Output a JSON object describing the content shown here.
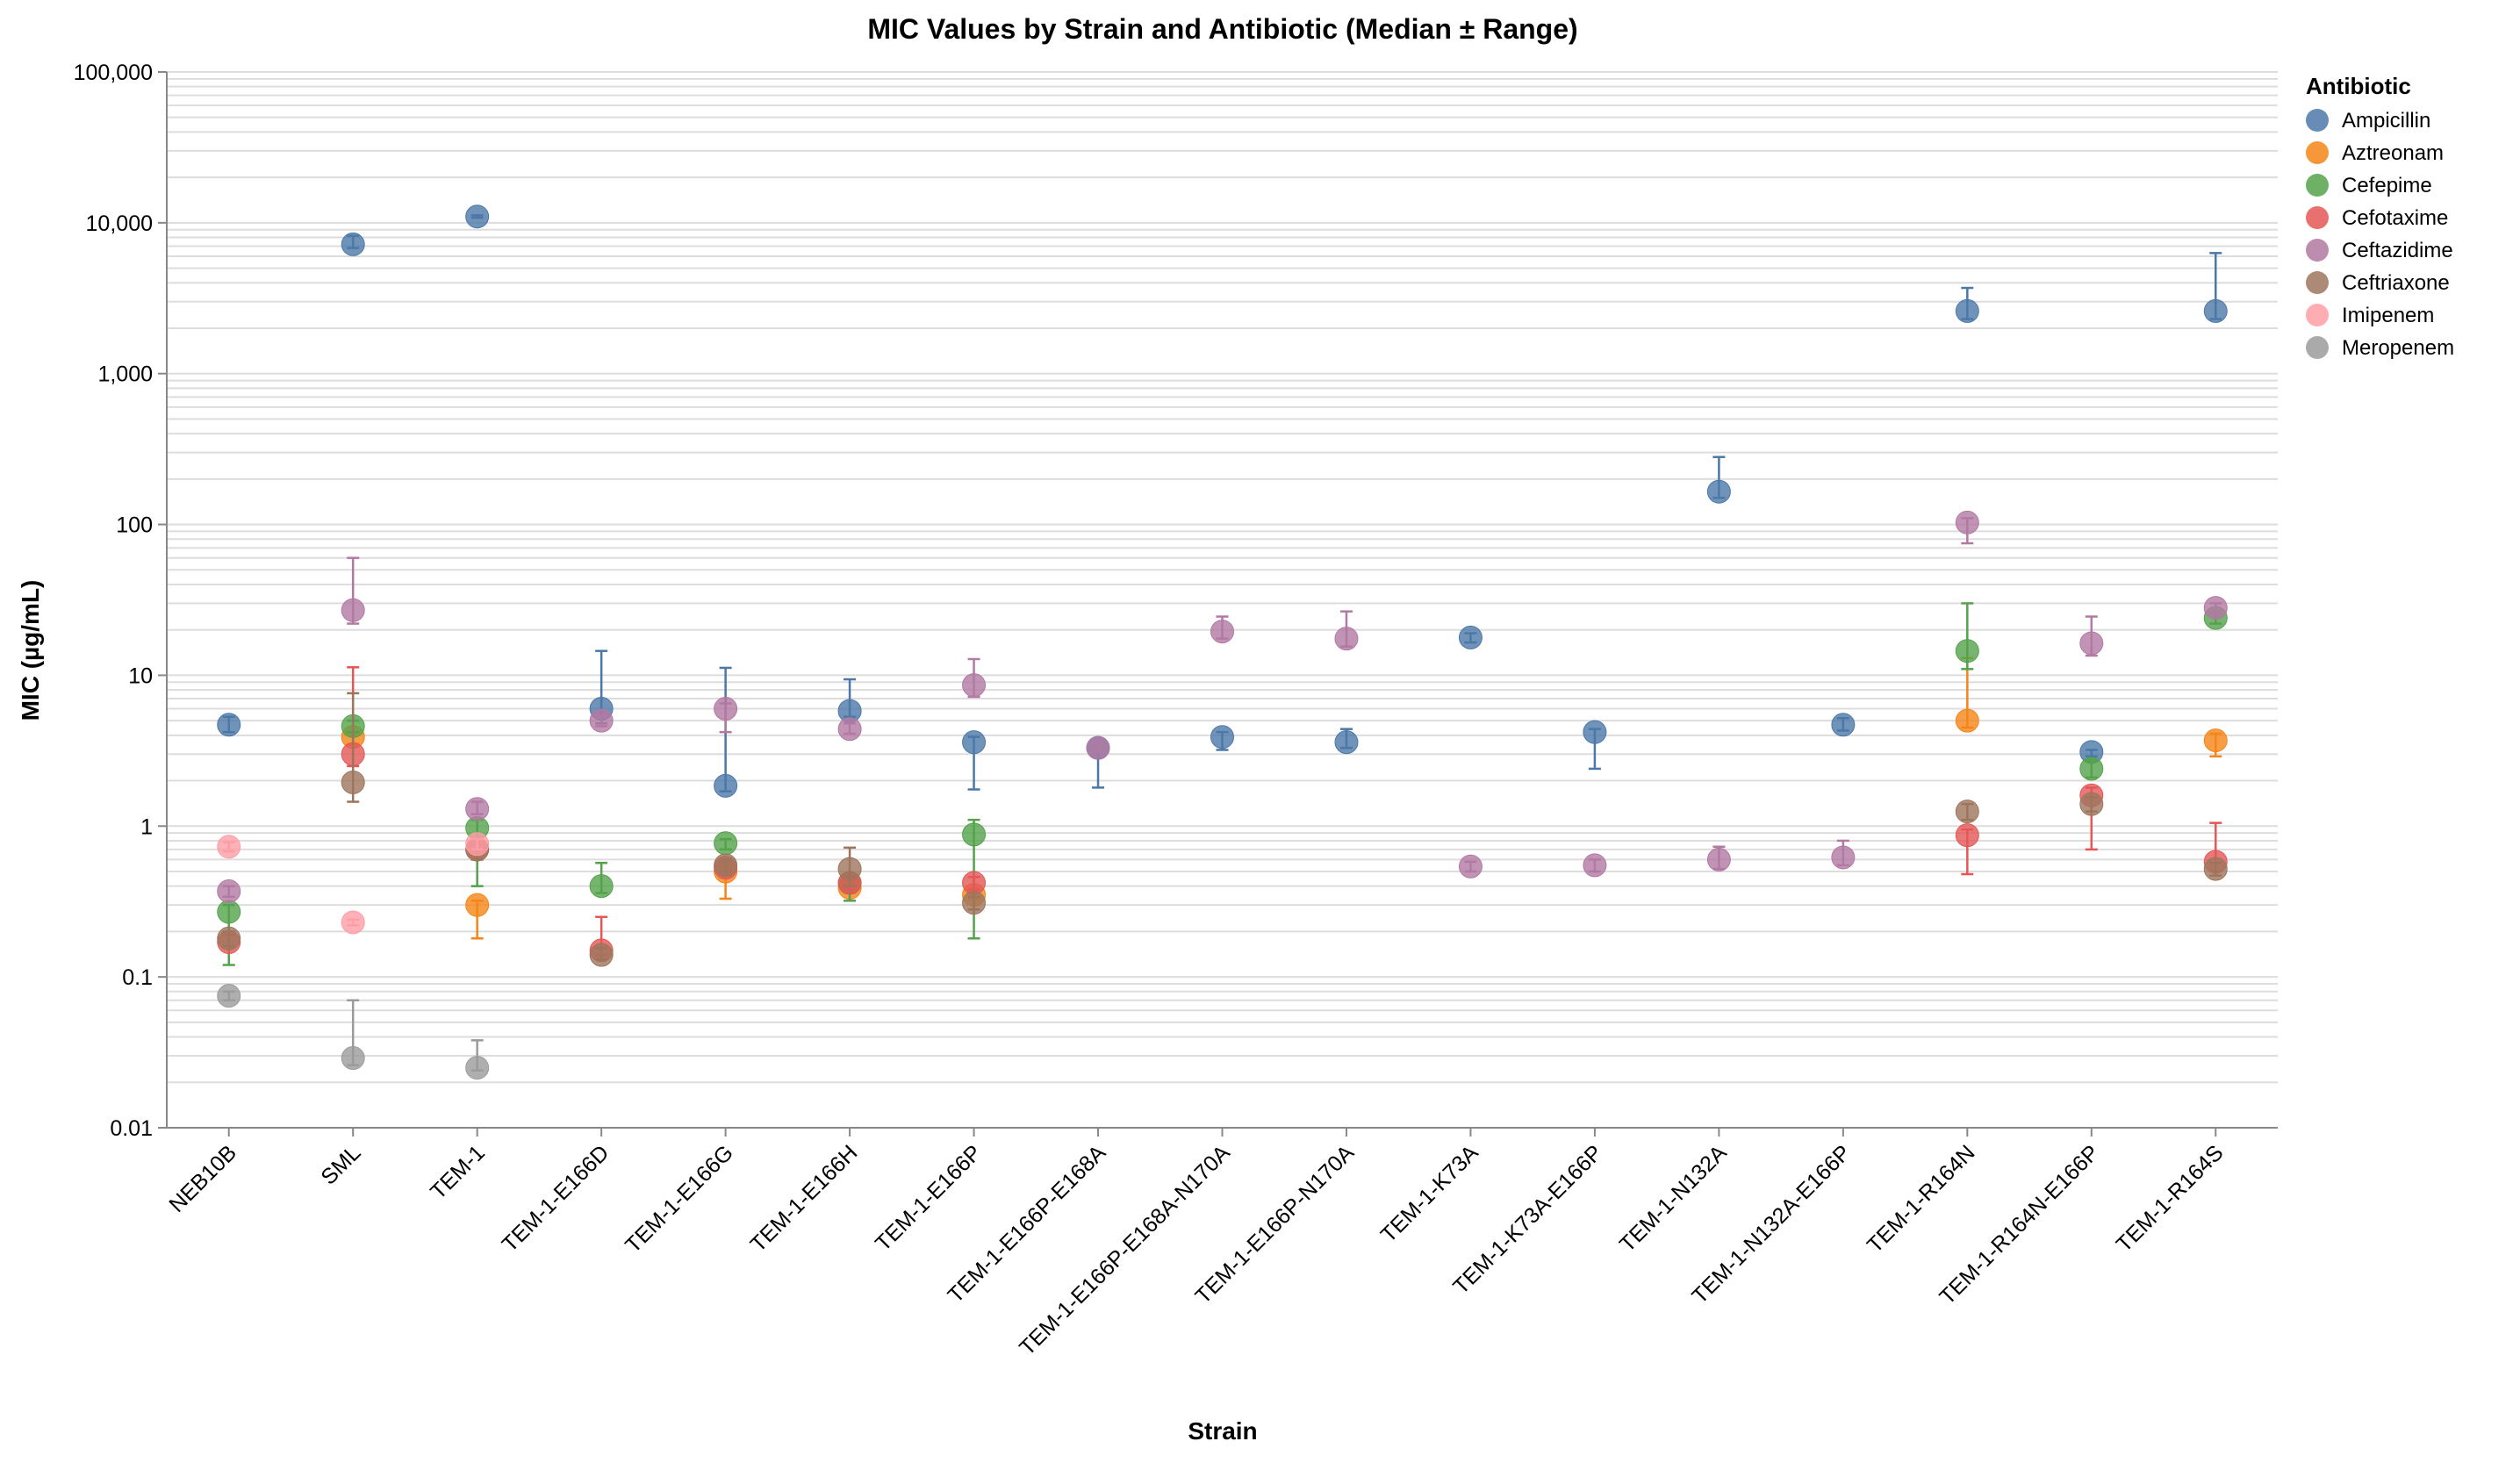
{
  "chart_data": {
    "type": "scatter",
    "title": "MIC Values by Strain and Antibiotic (Median ± Range)",
    "xlabel": "Strain",
    "ylabel": "MIC (µg/mL)",
    "y_scale": "log",
    "ylim": [
      0.01,
      100000
    ],
    "y_ticks": [
      "0.01",
      "0.1",
      "1",
      "10",
      "100",
      "1,000",
      "10,000",
      "100,000"
    ],
    "grid": true,
    "legend_position": "right",
    "legend_title": "Antibiotic",
    "categories": [
      "NEB10B",
      "SML",
      "TEM-1",
      "TEM-1-E166D",
      "TEM-1-E166G",
      "TEM-1-E166H",
      "TEM-1-E166P",
      "TEM-1-E166P-E168A",
      "TEM-1-E166P-E168A-N170A",
      "TEM-1-E166P-N170A",
      "TEM-1-K73A",
      "TEM-1-K73A-E166P",
      "TEM-1-N132A",
      "TEM-1-N132A-E166P",
      "TEM-1-R164N",
      "TEM-1-R164N-E166P",
      "TEM-1-R164S"
    ],
    "series": [
      {
        "name": "Ampicillin",
        "color": "#4c78a8",
        "points": [
          {
            "x": "NEB10B",
            "y": 4.7,
            "lo": 4.2,
            "hi": 5.3
          },
          {
            "x": "SML",
            "y": 7200,
            "lo": 6800,
            "hi": 8200
          },
          {
            "x": "TEM-1",
            "y": 11000,
            "lo": 10800,
            "hi": 11200
          },
          {
            "x": "TEM-1-E166D",
            "y": 6.0,
            "lo": 4.8,
            "hi": 14.5
          },
          {
            "x": "TEM-1-E166G",
            "y": 1.85,
            "lo": 1.7,
            "hi": 11.2
          },
          {
            "x": "TEM-1-E166H",
            "y": 5.8,
            "lo": 5.3,
            "hi": 9.4
          },
          {
            "x": "TEM-1-E166P",
            "y": 3.6,
            "lo": 1.75,
            "hi": 3.9
          },
          {
            "x": "TEM-1-E166P-E168A",
            "y": 3.3,
            "lo": 1.8,
            "hi": 3.5
          },
          {
            "x": "TEM-1-E166P-E168A-N170A",
            "y": 3.9,
            "lo": 3.2,
            "hi": 4.2
          },
          {
            "x": "TEM-1-E166P-N170A",
            "y": 3.6,
            "lo": 3.3,
            "hi": 4.4
          },
          {
            "x": "TEM-1-K73A",
            "y": 17.8,
            "lo": 16.5,
            "hi": 19
          },
          {
            "x": "TEM-1-K73A-E166P",
            "y": 4.2,
            "lo": 2.4,
            "hi": 4.4
          },
          {
            "x": "TEM-1-N132A",
            "y": 165,
            "lo": 150,
            "hi": 280
          },
          {
            "x": "TEM-1-N132A-E166P",
            "y": 4.7,
            "lo": 4.3,
            "hi": 5.2
          },
          {
            "x": "TEM-1-R164N",
            "y": 2600,
            "lo": 2300,
            "hi": 3700
          },
          {
            "x": "TEM-1-R164N-E166P",
            "y": 3.1,
            "lo": 2.9,
            "hi": 3.2
          },
          {
            "x": "TEM-1-R164S",
            "y": 2600,
            "lo": 2300,
            "hi": 6300
          }
        ]
      },
      {
        "name": "Aztreonam",
        "color": "#f58518",
        "points": [
          {
            "x": "SML",
            "y": 3.9,
            "lo": 3.5,
            "hi": 4.2
          },
          {
            "x": "TEM-1",
            "y": 0.3,
            "lo": 0.18,
            "hi": 0.32
          },
          {
            "x": "TEM-1-E166G",
            "y": 0.5,
            "lo": 0.33,
            "hi": 0.55
          },
          {
            "x": "TEM-1-E166H",
            "y": 0.39,
            "lo": 0.36,
            "hi": 0.42
          },
          {
            "x": "TEM-1-E166P",
            "y": 0.35,
            "lo": 0.33,
            "hi": 0.38
          },
          {
            "x": "TEM-1-R164N",
            "y": 5.0,
            "lo": 4.5,
            "hi": 13
          },
          {
            "x": "TEM-1-R164S",
            "y": 3.7,
            "lo": 2.9,
            "hi": 4.1
          }
        ]
      },
      {
        "name": "Cefepime",
        "color": "#54a24b",
        "points": [
          {
            "x": "NEB10B",
            "y": 0.27,
            "lo": 0.12,
            "hi": 0.3
          },
          {
            "x": "SML",
            "y": 4.6,
            "lo": 4.2,
            "hi": 5
          },
          {
            "x": "TEM-1",
            "y": 0.97,
            "lo": 0.4,
            "hi": 1.1
          },
          {
            "x": "TEM-1-E166D",
            "y": 0.4,
            "lo": 0.36,
            "hi": 0.57
          },
          {
            "x": "TEM-1-E166G",
            "y": 0.77,
            "lo": 0.7,
            "hi": 0.82
          },
          {
            "x": "TEM-1-E166H",
            "y": 0.42,
            "lo": 0.32,
            "hi": 0.45
          },
          {
            "x": "TEM-1-E166P",
            "y": 0.88,
            "lo": 0.18,
            "hi": 1.1
          },
          {
            "x": "TEM-1-R164N",
            "y": 14.5,
            "lo": 11,
            "hi": 30
          },
          {
            "x": "TEM-1-R164N-E166P",
            "y": 2.4,
            "lo": 2.1,
            "hi": 2.7
          },
          {
            "x": "TEM-1-R164S",
            "y": 24,
            "lo": 22,
            "hi": 26
          }
        ]
      },
      {
        "name": "Cefotaxime",
        "color": "#e45756",
        "points": [
          {
            "x": "NEB10B",
            "y": 0.17,
            "lo": 0.16,
            "hi": 0.19
          },
          {
            "x": "SML",
            "y": 3.0,
            "lo": 2.5,
            "hi": 11.3
          },
          {
            "x": "TEM-1",
            "y": 0.7,
            "lo": 0.6,
            "hi": 0.8
          },
          {
            "x": "TEM-1-E166D",
            "y": 0.15,
            "lo": 0.14,
            "hi": 0.25
          },
          {
            "x": "TEM-1-E166G",
            "y": 0.53,
            "lo": 0.48,
            "hi": 0.58
          },
          {
            "x": "TEM-1-E166H",
            "y": 0.42,
            "lo": 0.38,
            "hi": 0.46
          },
          {
            "x": "TEM-1-E166P",
            "y": 0.42,
            "lo": 0.38,
            "hi": 0.46
          },
          {
            "x": "TEM-1-R164N",
            "y": 0.87,
            "lo": 0.48,
            "hi": 0.95
          },
          {
            "x": "TEM-1-R164N-E166P",
            "y": 1.6,
            "lo": 0.7,
            "hi": 1.8
          },
          {
            "x": "TEM-1-R164S",
            "y": 0.58,
            "lo": 0.5,
            "hi": 1.05
          }
        ]
      },
      {
        "name": "Ceftazidime",
        "color": "#b279a2",
        "points": [
          {
            "x": "NEB10B",
            "y": 0.37,
            "lo": 0.34,
            "hi": 0.4
          },
          {
            "x": "SML",
            "y": 27,
            "lo": 22,
            "hi": 60
          },
          {
            "x": "TEM-1",
            "y": 1.3,
            "lo": 1.2,
            "hi": 1.45
          },
          {
            "x": "TEM-1-E166D",
            "y": 5.0,
            "lo": 4.6,
            "hi": 5.4
          },
          {
            "x": "TEM-1-E166G",
            "y": 6.0,
            "lo": 4.2,
            "hi": 6.5
          },
          {
            "x": "TEM-1-E166H",
            "y": 4.4,
            "lo": 4.1,
            "hi": 4.8
          },
          {
            "x": "TEM-1-E166P",
            "y": 8.6,
            "lo": 7.2,
            "hi": 12.8
          },
          {
            "x": "TEM-1-E166P-E168A",
            "y": 3.3,
            "lo": 3.1,
            "hi": 3.5
          },
          {
            "x": "TEM-1-E166P-E168A-N170A",
            "y": 19.5,
            "lo": 17.5,
            "hi": 24.5
          },
          {
            "x": "TEM-1-E166P-N170A",
            "y": 17.5,
            "lo": 15.5,
            "hi": 26.5
          },
          {
            "x": "TEM-1-K73A",
            "y": 0.54,
            "lo": 0.5,
            "hi": 0.58
          },
          {
            "x": "TEM-1-K73A-E166P",
            "y": 0.55,
            "lo": 0.5,
            "hi": 0.6
          },
          {
            "x": "TEM-1-N132A",
            "y": 0.6,
            "lo": 0.52,
            "hi": 0.73
          },
          {
            "x": "TEM-1-N132A-E166P",
            "y": 0.62,
            "lo": 0.55,
            "hi": 0.8
          },
          {
            "x": "TEM-1-R164N",
            "y": 103,
            "lo": 75,
            "hi": 110
          },
          {
            "x": "TEM-1-R164N-E166P",
            "y": 16.3,
            "lo": 13.5,
            "hi": 24.5
          },
          {
            "x": "TEM-1-R164S",
            "y": 28,
            "lo": 26,
            "hi": 30
          }
        ]
      },
      {
        "name": "Ceftriaxone",
        "color": "#9d755d",
        "points": [
          {
            "x": "NEB10B",
            "y": 0.18,
            "lo": 0.16,
            "hi": 0.2
          },
          {
            "x": "SML",
            "y": 1.95,
            "lo": 1.45,
            "hi": 7.6
          },
          {
            "x": "TEM-1",
            "y": 0.7,
            "lo": 0.6,
            "hi": 0.8
          },
          {
            "x": "TEM-1-E166D",
            "y": 0.14,
            "lo": 0.13,
            "hi": 0.155
          },
          {
            "x": "TEM-1-E166G",
            "y": 0.55,
            "lo": 0.5,
            "hi": 0.6
          },
          {
            "x": "TEM-1-E166H",
            "y": 0.52,
            "lo": 0.4,
            "hi": 0.72
          },
          {
            "x": "TEM-1-E166P",
            "y": 0.31,
            "lo": 0.28,
            "hi": 0.34
          },
          {
            "x": "TEM-1-R164N",
            "y": 1.25,
            "lo": 1.1,
            "hi": 1.4
          },
          {
            "x": "TEM-1-R164N-E166P",
            "y": 1.4,
            "lo": 1.25,
            "hi": 1.55
          },
          {
            "x": "TEM-1-R164S",
            "y": 0.52,
            "lo": 0.47,
            "hi": 0.57
          }
        ]
      },
      {
        "name": "Imipenem",
        "color": "#ff9da6",
        "points": [
          {
            "x": "NEB10B",
            "y": 0.73,
            "lo": 0.68,
            "hi": 0.78
          },
          {
            "x": "SML",
            "y": 0.23,
            "lo": 0.22,
            "hi": 0.24
          },
          {
            "x": "TEM-1",
            "y": 0.76,
            "lo": 0.7,
            "hi": 0.82
          }
        ]
      },
      {
        "name": "Meropenem",
        "color": "#9b9b9b",
        "points": [
          {
            "x": "NEB10B",
            "y": 0.075,
            "lo": 0.07,
            "hi": 0.08
          },
          {
            "x": "SML",
            "y": 0.029,
            "lo": 0.026,
            "hi": 0.07
          },
          {
            "x": "TEM-1",
            "y": 0.025,
            "lo": 0.024,
            "hi": 0.038
          }
        ]
      }
    ]
  }
}
